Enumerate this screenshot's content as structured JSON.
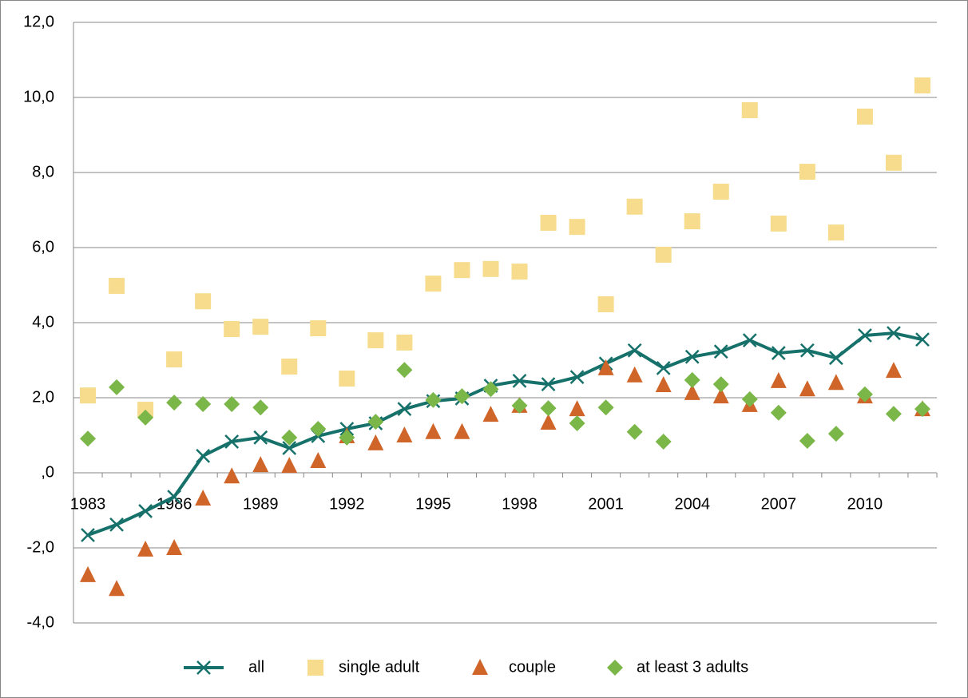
{
  "chart_data": {
    "type": "line",
    "categories": [
      "1983",
      null,
      null,
      "1986",
      null,
      null,
      "1989",
      null,
      null,
      "1992",
      null,
      null,
      "1995",
      null,
      null,
      "1998",
      null,
      null,
      "2001",
      null,
      null,
      "2004",
      null,
      null,
      "2007",
      null,
      null,
      "2010",
      null,
      null
    ],
    "series": [
      {
        "name": "all",
        "color": "#16716a",
        "line": true,
        "marker": "x",
        "values": [
          -1.66,
          -1.38,
          -1.02,
          -0.64,
          0.45,
          0.83,
          0.94,
          0.66,
          0.98,
          1.17,
          1.32,
          1.7,
          1.91,
          1.98,
          2.32,
          2.45,
          2.36,
          2.55,
          2.91,
          3.26,
          2.79,
          3.09,
          3.23,
          3.53,
          3.19,
          3.26,
          3.06,
          3.66,
          3.72,
          3.55
        ]
      },
      {
        "name": "single adult",
        "color": "#f6dc8c",
        "line": false,
        "marker": "square",
        "values": [
          2.06,
          4.98,
          1.68,
          3.02,
          4.57,
          3.83,
          3.89,
          2.83,
          3.85,
          2.51,
          3.53,
          3.47,
          5.04,
          5.4,
          5.43,
          5.36,
          6.66,
          6.55,
          4.49,
          7.09,
          5.81,
          6.7,
          7.49,
          9.66,
          6.64,
          8.02,
          6.4,
          9.49,
          8.26,
          10.32
        ]
      },
      {
        "name": "couple",
        "color": "#d0652a",
        "line": false,
        "marker": "triangle",
        "values": [
          -2.72,
          -3.09,
          -2.04,
          -2.0,
          -0.68,
          -0.09,
          0.21,
          0.19,
          0.32,
          0.98,
          0.79,
          1.0,
          1.09,
          1.09,
          1.55,
          1.79,
          1.34,
          1.7,
          2.79,
          2.6,
          2.34,
          2.13,
          2.04,
          1.81,
          2.45,
          2.23,
          2.4,
          2.04,
          2.72,
          1.7
        ]
      },
      {
        "name": "at least 3 adults",
        "color": "#7ab648",
        "line": false,
        "marker": "diamond",
        "values": [
          0.91,
          2.28,
          1.47,
          1.87,
          1.83,
          1.83,
          1.74,
          0.94,
          1.17,
          0.94,
          1.36,
          2.74,
          1.94,
          2.04,
          2.23,
          1.79,
          1.72,
          1.32,
          1.74,
          1.09,
          0.83,
          2.47,
          2.36,
          1.96,
          1.6,
          0.85,
          1.04,
          2.09,
          1.57,
          1.7
        ]
      }
    ],
    "ylim": [
      -4,
      12
    ],
    "yticks": [
      {
        "value": -4,
        "label": "-4,0"
      },
      {
        "value": -2,
        "label": "-2,0"
      },
      {
        "value": 0,
        "label": ",0"
      },
      {
        "value": 2,
        "label": "2,0"
      },
      {
        "value": 4,
        "label": "4,0"
      },
      {
        "value": 6,
        "label": "6,0"
      },
      {
        "value": 8,
        "label": "8,0"
      },
      {
        "value": 10,
        "label": "10,0"
      },
      {
        "value": 12,
        "label": "12,0"
      }
    ],
    "grid": true,
    "legend": "bottom"
  }
}
